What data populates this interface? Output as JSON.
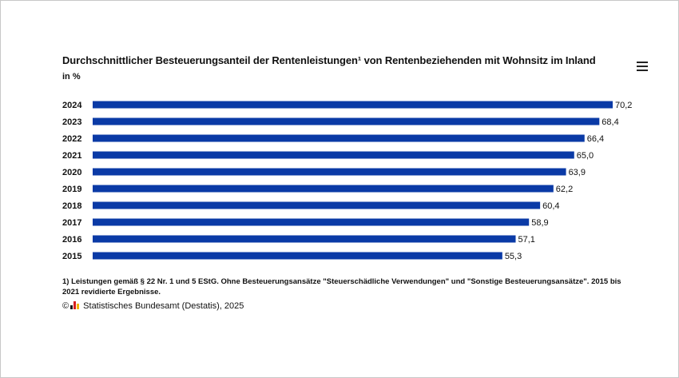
{
  "title": "Durchschnittlicher Besteuerungsanteil der Rentenleistungen¹ von Rentenbeziehenden mit Wohnsitz im Inland",
  "subtitle": "in %",
  "menu_icon": "hamburger-menu-icon",
  "footnote": "1) Leistungen gemäß § 22 Nr. 1 und 5 EStG. Ohne Besteuerungsansätze \"Steuerschädliche Verwendungen\" und \"Sonstige Besteuerungsansätze\". 2015 bis 2021 revidierte Ergebnisse.",
  "source": {
    "copyright": "©",
    "logo_icon": "destatis-logo-icon",
    "text": "Statistisches Bundesamt (Destatis), 2025"
  },
  "colors": {
    "bar": "#0a3aa6"
  },
  "chart_data": {
    "type": "bar",
    "orientation": "horizontal",
    "categories": [
      "2024",
      "2023",
      "2022",
      "2021",
      "2020",
      "2019",
      "2018",
      "2017",
      "2016",
      "2015"
    ],
    "values": [
      70.2,
      68.4,
      66.4,
      65.0,
      63.9,
      62.2,
      60.4,
      58.9,
      57.1,
      55.3
    ],
    "value_labels": [
      "70,2",
      "68,4",
      "66,4",
      "65,0",
      "63,9",
      "62,2",
      "60,4",
      "58,9",
      "57,1",
      "55,3"
    ],
    "title": "Durchschnittlicher Besteuerungsanteil der Rentenleistungen¹ von Rentenbeziehenden mit Wohnsitz im Inland",
    "xlabel": "",
    "ylabel": "",
    "xlim": [
      0,
      70.2
    ],
    "grid": false,
    "legend": "none"
  }
}
